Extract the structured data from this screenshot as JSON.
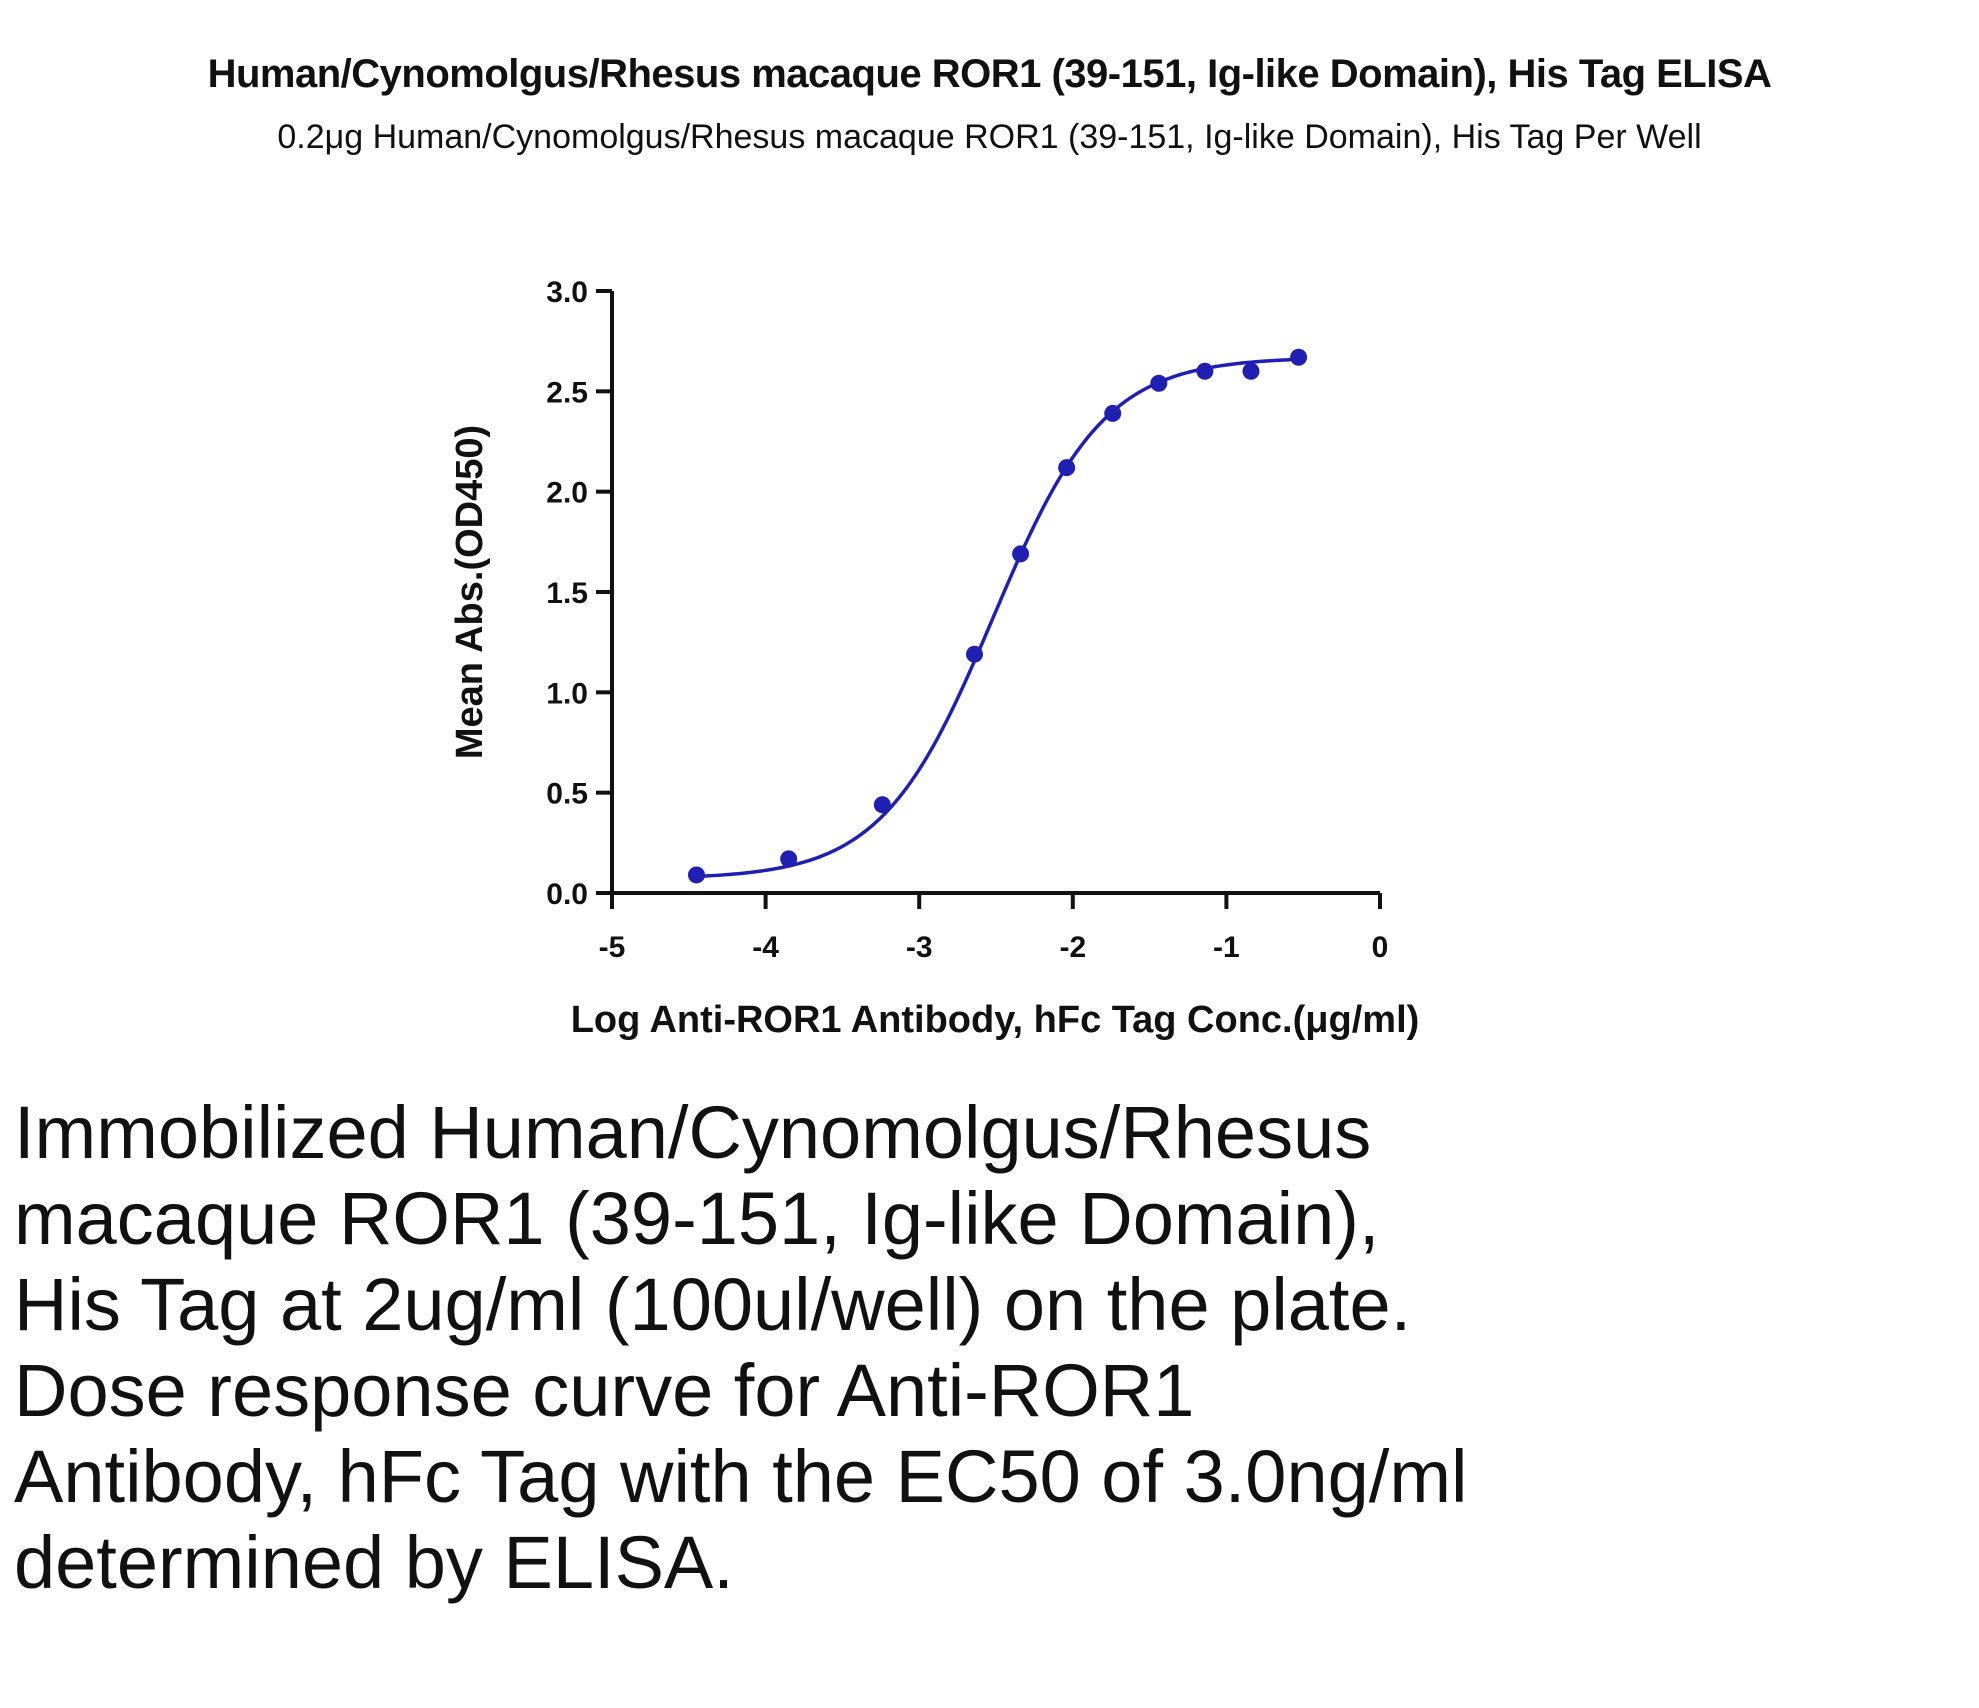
{
  "chart_data": {
    "type": "line",
    "title": "Human/Cynomolgus/Rhesus macaque ROR1 (39-151, Ig-like Domain), His Tag ELISA",
    "subtitle": "0.2μg Human/Cynomolgus/Rhesus macaque ROR1 (39-151, Ig-like Domain), His Tag Per Well",
    "xlabel": "Log Anti-ROR1 Antibody, hFc Tag Conc.(μg/ml)",
    "ylabel": "Mean Abs.(OD450)",
    "xlim": [
      -5,
      0
    ],
    "ylim": [
      0,
      3.0
    ],
    "xticks": [
      -5,
      -4,
      -3,
      -2,
      -1,
      0
    ],
    "xtick_labels": [
      "-5",
      "-4",
      "-3",
      "-2",
      "-1",
      "0"
    ],
    "yticks": [
      0,
      0.5,
      1.0,
      1.5,
      2.0,
      2.5,
      3.0
    ],
    "ytick_labels": [
      "0.0",
      "0.5",
      "1.0",
      "1.5",
      "2.0",
      "2.5",
      "3.0"
    ],
    "grid": false,
    "color": "#1f1fb4",
    "series": [
      {
        "x": [
          -4.45,
          -3.85,
          -3.24,
          -2.64,
          -2.34,
          -2.04,
          -1.74,
          -1.44,
          -1.14,
          -0.84,
          -0.53
        ],
        "y": [
          0.09,
          0.17,
          0.44,
          1.19,
          1.69,
          2.12,
          2.39,
          2.54,
          2.6,
          2.6,
          2.67
        ]
      }
    ],
    "fit": {
      "bottom": 0.07,
      "top": 2.67,
      "logEC50": -2.52,
      "hill": 1.2
    }
  },
  "caption": "Immobilized Human/Cynomolgus/Rhesus macaque ROR1 (39-151, Ig-like Domain), His Tag at 2ug/ml (100ul/well) on the plate. Dose response curve for Anti-ROR1 Antibody, hFc Tag with the EC50 of 3.0ng/ml determined by ELISA."
}
